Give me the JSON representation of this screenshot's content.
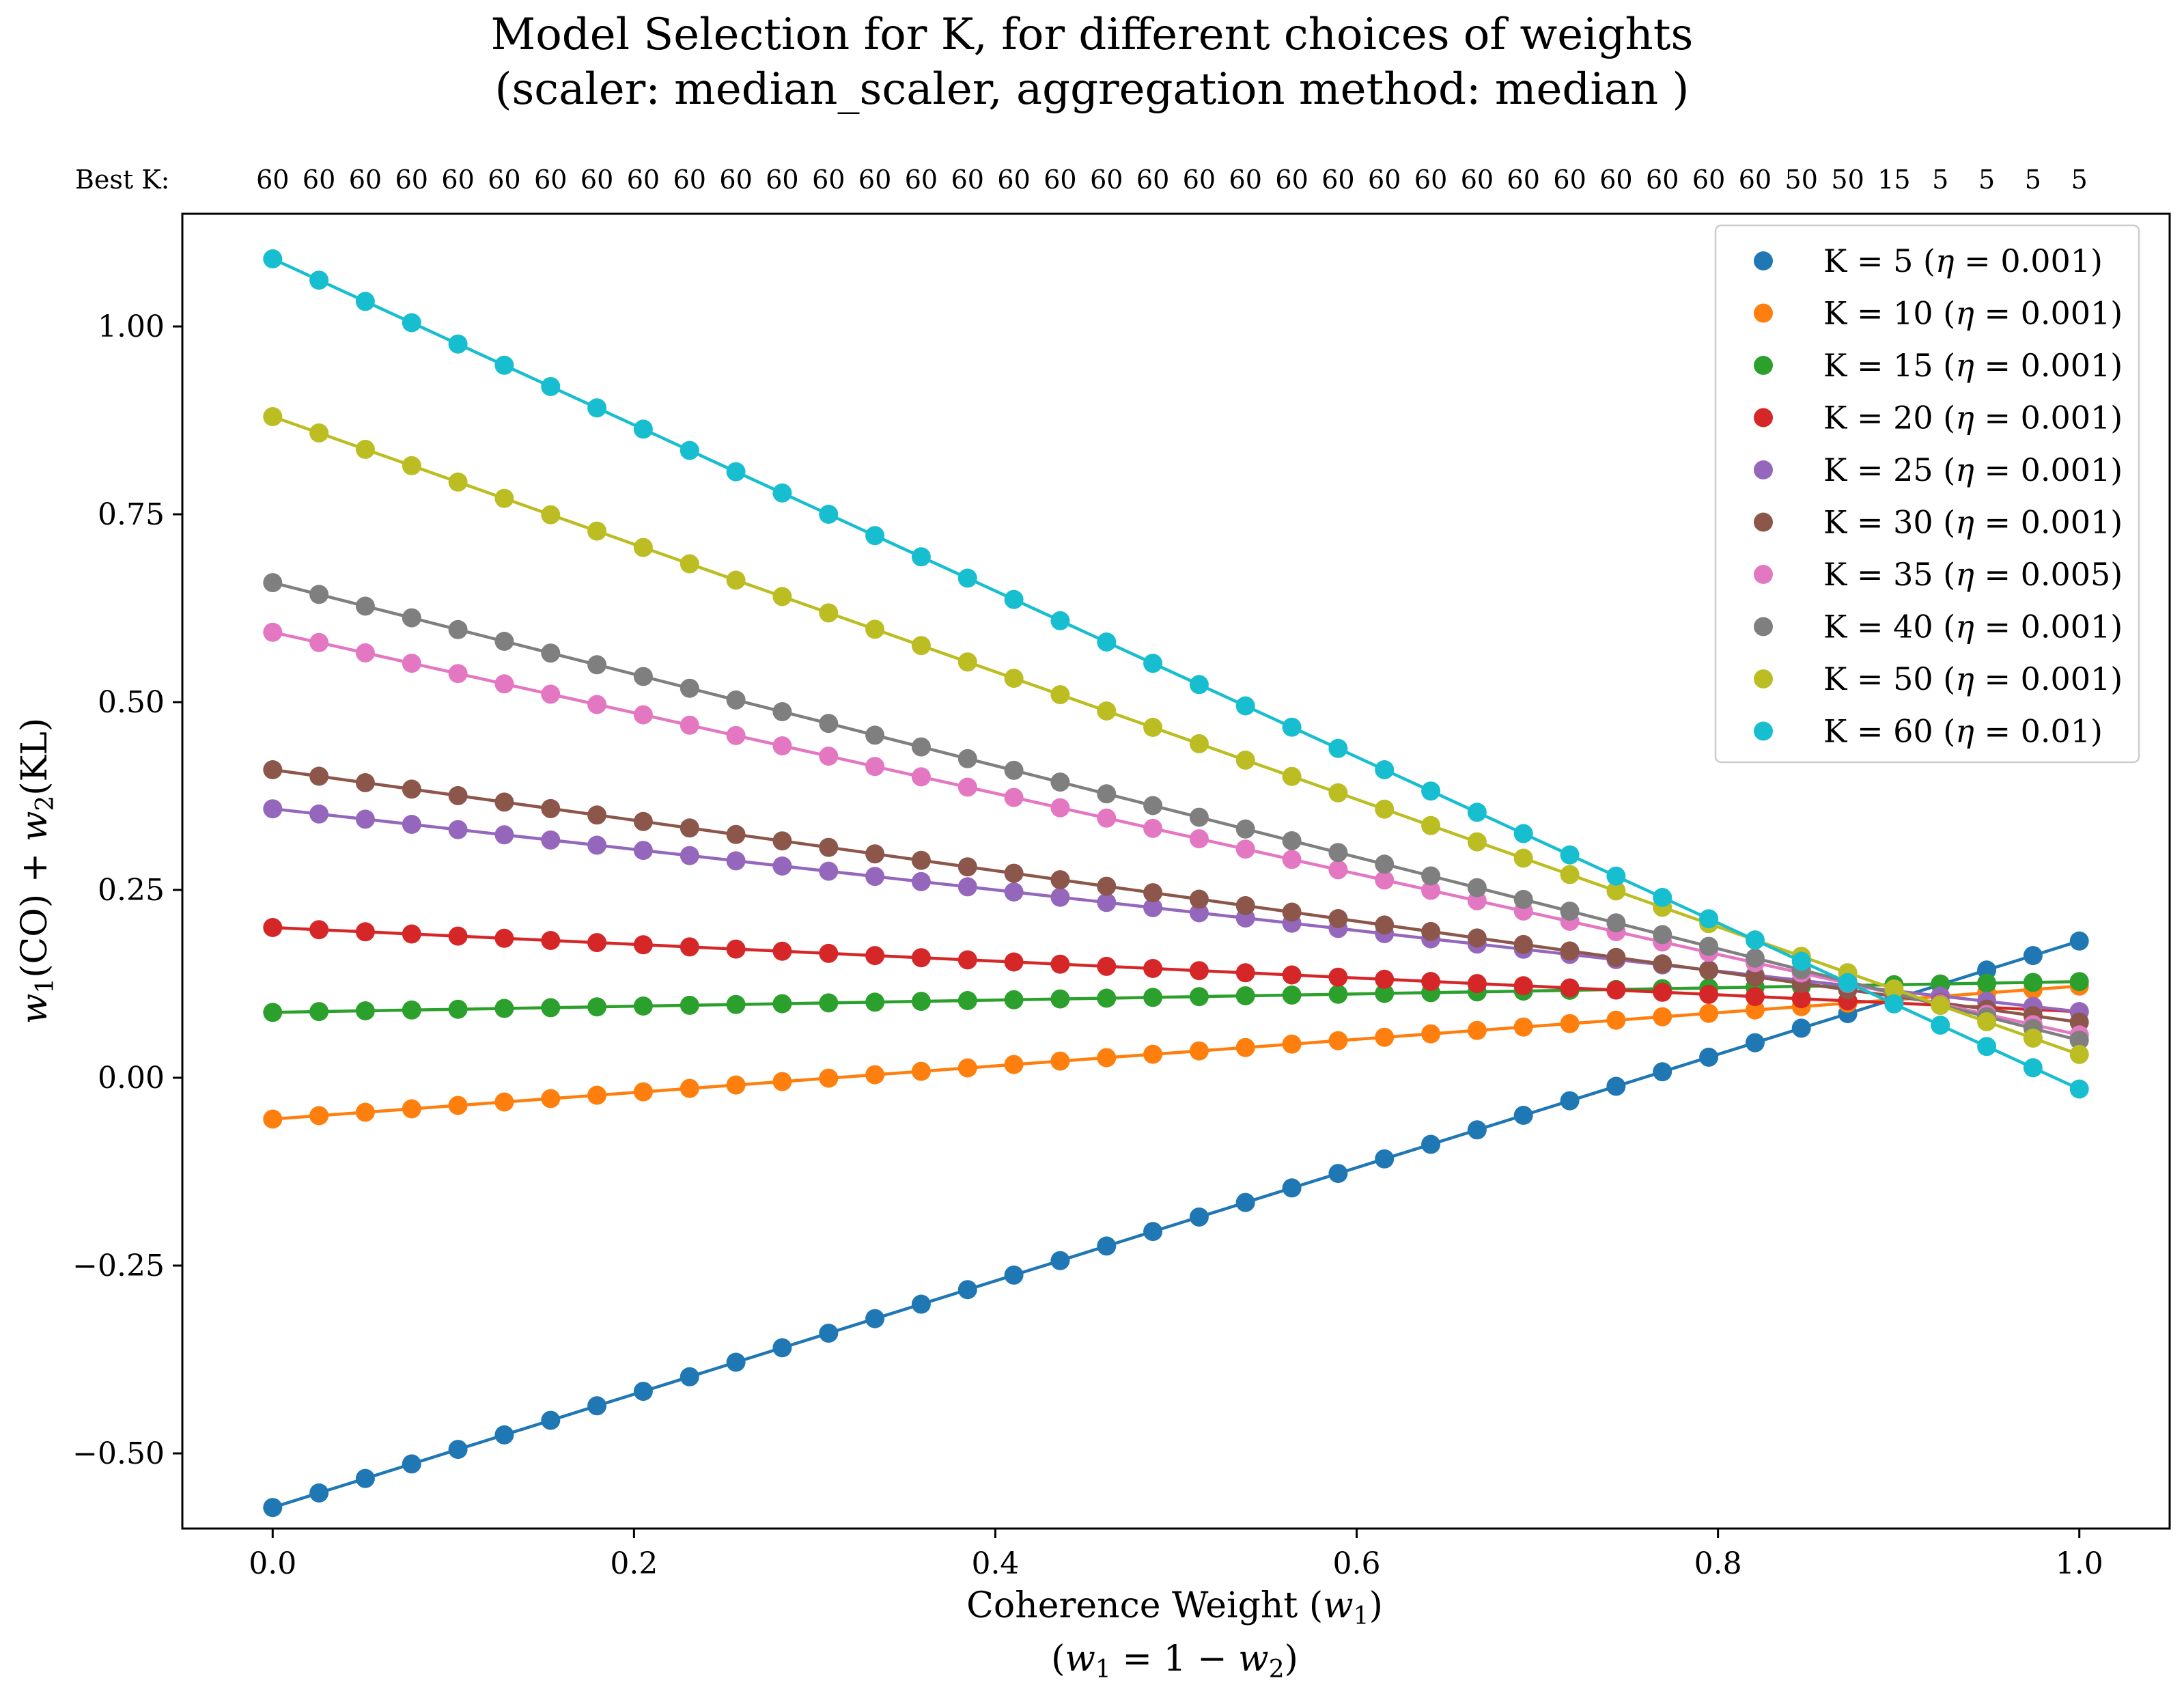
{
  "chart_data": {
    "type": "line",
    "title_line1": "Model Selection for K, for different choices of weights",
    "title_line2": "(scaler: median_scaler, aggregation method: median )",
    "xlabel_line1_prefix": "Coherence Weight (",
    "xlabel_line1_var": "w",
    "xlabel_line1_sub": "1",
    "xlabel_line1_suffix": ")",
    "xlabel_line2_parts": [
      "(",
      "w",
      "1",
      " = 1 − ",
      "w",
      "2",
      ")"
    ],
    "ylabel_parts": [
      "w",
      "1",
      "(CO) + ",
      "w",
      "2",
      "(KL)"
    ],
    "xlim": [
      -0.05,
      1.05
    ],
    "ylim": [
      -0.6,
      1.15
    ],
    "xticks": [
      0.0,
      0.2,
      0.4,
      0.6,
      0.8,
      1.0
    ],
    "xtick_labels": [
      "0.0",
      "0.2",
      "0.4",
      "0.6",
      "0.8",
      "1.0"
    ],
    "yticks": [
      -0.5,
      -0.25,
      0.0,
      0.25,
      0.5,
      0.75,
      1.0
    ],
    "ytick_labels": [
      "−0.50",
      "−0.25",
      "0.00",
      "0.25",
      "0.50",
      "0.75",
      "1.00"
    ],
    "grid": false,
    "legend_position": "upper right",
    "n_points": 40,
    "x_range": [
      0.0,
      1.0
    ],
    "best_k_label": "Best K:",
    "best_k": [
      "60",
      "60",
      "60",
      "60",
      "60",
      "60",
      "60",
      "60",
      "60",
      "60",
      "60",
      "60",
      "60",
      "60",
      "60",
      "60",
      "60",
      "60",
      "60",
      "60",
      "60",
      "60",
      "60",
      "60",
      "60",
      "60",
      "60",
      "60",
      "60",
      "60",
      "60",
      "60",
      "60",
      "50",
      "50",
      "15",
      "5",
      "5",
      "5",
      "5"
    ],
    "series": [
      {
        "name": "K = 5 (η = 0.001)",
        "k": "K = 5 (",
        "eta": "η",
        "rest": " = 0.001)",
        "color": "#1f77b4",
        "y_start": -0.572,
        "y_end": 0.182
      },
      {
        "name": "K = 10 (η = 0.001)",
        "k": "K = 10 (",
        "eta": "η",
        "rest": " = 0.001)",
        "color": "#ff7f0e",
        "y_start": -0.055,
        "y_end": 0.122
      },
      {
        "name": "K = 15 (η = 0.001)",
        "k": "K = 15 (",
        "eta": "η",
        "rest": " = 0.001)",
        "color": "#2ca02c",
        "y_start": 0.087,
        "y_end": 0.128
      },
      {
        "name": "K = 20 (η = 0.001)",
        "k": "K = 20 (",
        "eta": "η",
        "rest": " = 0.001)",
        "color": "#d62728",
        "y_start": 0.2,
        "y_end": 0.088
      },
      {
        "name": "K = 25 (η = 0.001)",
        "k": "K = 25 (",
        "eta": "η",
        "rest": " = 0.001)",
        "color": "#9467bd",
        "y_start": 0.358,
        "y_end": 0.088
      },
      {
        "name": "K = 30 (η = 0.001)",
        "k": "K = 30 (",
        "eta": "η",
        "rest": " = 0.001)",
        "color": "#8c564b",
        "y_start": 0.41,
        "y_end": 0.074
      },
      {
        "name": "K = 35 (η = 0.005)",
        "k": "K = 35 (",
        "eta": "η",
        "rest": " = 0.005)",
        "color": "#e377c2",
        "y_start": 0.593,
        "y_end": 0.057
      },
      {
        "name": "K = 40 (η = 0.001)",
        "k": "K = 40 (",
        "eta": "η",
        "rest": " = 0.001)",
        "color": "#7f7f7f",
        "y_start": 0.659,
        "y_end": 0.05
      },
      {
        "name": "K = 50 (η = 0.001)",
        "k": "K = 50 (",
        "eta": "η",
        "rest": " = 0.001)",
        "color": "#bcbd22",
        "y_start": 0.88,
        "y_end": 0.031
      },
      {
        "name": "K = 60 (η = 0.01)",
        "k": "K = 60 (",
        "eta": "η",
        "rest": " = 0.01)",
        "color": "#17becf",
        "y_start": 1.09,
        "y_end": -0.015
      }
    ]
  }
}
